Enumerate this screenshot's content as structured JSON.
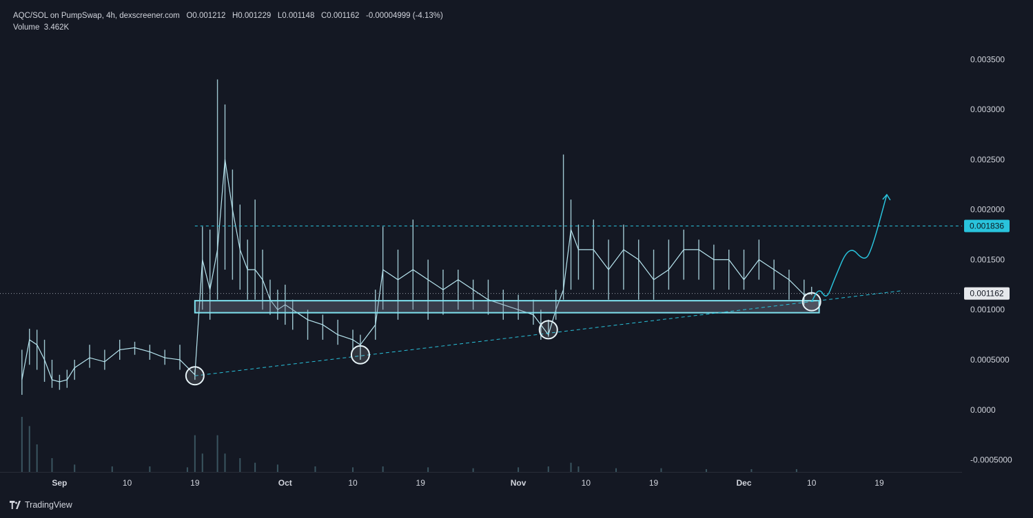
{
  "header": {
    "symbol": "AQC/SOL on PumpSwap, 4h, dexscreener.com",
    "open_label": "O",
    "open": "0.001212",
    "high_label": "H",
    "high": "0.001229",
    "low_label": "L",
    "low": "0.001148",
    "close_label": "C",
    "close": "0.001162",
    "change": "-0.00004999 (-4.13%)",
    "volume_label": "Volume",
    "volume": "3.462K"
  },
  "footer": {
    "brand": "TradingView"
  },
  "colors": {
    "background": "#141823",
    "candle": "#b8e6f0",
    "accent": "#29c3dc",
    "current_price_tag": "#e6e8ec",
    "volume_bar": "#3a5560"
  },
  "chart_data": {
    "type": "line",
    "title": "",
    "xlabel": "",
    "ylabel": "",
    "x_ticks": [
      "Sep",
      "10",
      "19",
      "Oct",
      "10",
      "19",
      "Nov",
      "10",
      "19",
      "Dec",
      "10",
      "19"
    ],
    "x_tick_dates": [
      "2025-09-01",
      "2025-09-10",
      "2025-09-19",
      "2025-10-01",
      "2025-10-10",
      "2025-10-19",
      "2025-11-01",
      "2025-11-10",
      "2025-11-19",
      "2025-12-01",
      "2025-12-10",
      "2025-12-19"
    ],
    "y_ticks": [
      "0.003500",
      "0.003000",
      "0.002500",
      "0.002000",
      "0.001500",
      "0.001000",
      "0.0005000",
      "0.0000",
      "-0.0005000"
    ],
    "y_tick_values": [
      0.0035,
      0.003,
      0.0025,
      0.002,
      0.0015,
      0.001,
      0.0005,
      0.0,
      -0.0005
    ],
    "ylim": [
      -0.00062,
      0.00375
    ],
    "xlim": [
      "2025-08-25",
      "2025-12-30"
    ],
    "grid": false,
    "current_price": 0.001162,
    "current_price_label": "0.001162",
    "resistance_price": 0.001836,
    "resistance_label": "0.001836",
    "series": [
      {
        "x": [
          "2025-08-27",
          "2025-08-28",
          "2025-08-29",
          "2025-08-30",
          "2025-08-31",
          "2025-09-01",
          "2025-09-02",
          "2025-09-03",
          "2025-09-05",
          "2025-09-07",
          "2025-09-09",
          "2025-09-11",
          "2025-09-13",
          "2025-09-15",
          "2025-09-17",
          "2025-09-19",
          "2025-09-20",
          "2025-09-21",
          "2025-09-22",
          "2025-09-23",
          "2025-09-24",
          "2025-09-25",
          "2025-09-26",
          "2025-09-27",
          "2025-09-28",
          "2025-09-29",
          "2025-09-30",
          "2025-10-01",
          "2025-10-02",
          "2025-10-04",
          "2025-10-06",
          "2025-10-08",
          "2025-10-10",
          "2025-10-11",
          "2025-10-13",
          "2025-10-14",
          "2025-10-16",
          "2025-10-18",
          "2025-10-20",
          "2025-10-22",
          "2025-10-24",
          "2025-10-26",
          "2025-10-28",
          "2025-10-30",
          "2025-11-01",
          "2025-11-03",
          "2025-11-04",
          "2025-11-05",
          "2025-11-06",
          "2025-11-07",
          "2025-11-08",
          "2025-11-09",
          "2025-11-11",
          "2025-11-13",
          "2025-11-15",
          "2025-11-17",
          "2025-11-19",
          "2025-11-21",
          "2025-11-23",
          "2025-11-25",
          "2025-11-27",
          "2025-11-29",
          "2025-12-01",
          "2025-12-03",
          "2025-12-05",
          "2025-12-07",
          "2025-12-09",
          "2025-12-10"
        ],
        "close": [
          0.0003,
          0.0007,
          0.00065,
          0.0005,
          0.0003,
          0.00028,
          0.0003,
          0.00042,
          0.00052,
          0.00048,
          0.0006,
          0.00062,
          0.00058,
          0.00052,
          0.0005,
          0.00035,
          0.0015,
          0.0012,
          0.0016,
          0.0025,
          0.002,
          0.0016,
          0.0014,
          0.0014,
          0.0013,
          0.0011,
          0.001,
          0.00105,
          0.001,
          0.0009,
          0.00085,
          0.00075,
          0.0007,
          0.00065,
          0.00085,
          0.0014,
          0.0013,
          0.0014,
          0.0013,
          0.0012,
          0.0013,
          0.0012,
          0.0011,
          0.00105,
          0.001,
          0.00095,
          0.00085,
          0.00075,
          0.001,
          0.0012,
          0.0018,
          0.0016,
          0.0016,
          0.0014,
          0.0016,
          0.0015,
          0.0013,
          0.0014,
          0.0016,
          0.0016,
          0.0015,
          0.0015,
          0.0013,
          0.0015,
          0.0014,
          0.0013,
          0.00115,
          0.001162
        ],
        "high": [
          0.0006,
          0.00081,
          0.0008,
          0.0007,
          0.0005,
          0.00035,
          0.0004,
          0.0005,
          0.00065,
          0.0006,
          0.0007,
          0.00068,
          0.00065,
          0.0006,
          0.00065,
          0.0004,
          0.00183,
          0.0018,
          0.0033,
          0.00305,
          0.0024,
          0.00205,
          0.0017,
          0.0021,
          0.0016,
          0.0013,
          0.0012,
          0.00125,
          0.0011,
          0.001,
          0.00095,
          0.0009,
          0.0008,
          0.00075,
          0.0012,
          0.00183,
          0.0016,
          0.0019,
          0.0015,
          0.0014,
          0.0014,
          0.0013,
          0.0013,
          0.0012,
          0.00115,
          0.0011,
          0.001,
          0.0009,
          0.0012,
          0.00255,
          0.0021,
          0.00185,
          0.0019,
          0.0017,
          0.00185,
          0.0017,
          0.0016,
          0.0017,
          0.0018,
          0.0017,
          0.00165,
          0.0016,
          0.0016,
          0.0017,
          0.0015,
          0.0014,
          0.0013,
          0.001229
        ],
        "low": [
          0.00015,
          0.00045,
          0.0004,
          0.00028,
          0.00022,
          0.0002,
          0.00022,
          0.0003,
          0.00042,
          0.0004,
          0.0005,
          0.00055,
          0.0005,
          0.00045,
          0.0004,
          0.0003,
          0.001,
          0.0009,
          0.0011,
          0.0014,
          0.0013,
          0.0012,
          0.0011,
          0.0011,
          0.001,
          0.00095,
          0.0009,
          0.00085,
          0.0008,
          0.0007,
          0.0007,
          0.00065,
          0.0006,
          0.0005,
          0.0007,
          0.001,
          0.0009,
          0.001,
          0.0009,
          0.00095,
          0.001,
          0.001,
          0.00095,
          0.0009,
          0.0009,
          0.00085,
          0.0007,
          0.00073,
          0.0009,
          0.0011,
          0.0012,
          0.0013,
          0.0012,
          0.0011,
          0.0012,
          0.0011,
          0.0011,
          0.0012,
          0.0013,
          0.0013,
          0.0012,
          0.0012,
          0.0012,
          0.0013,
          0.0012,
          0.0011,
          0.00105,
          0.001148
        ]
      }
    ],
    "volume": {
      "x": [
        "2025-08-27",
        "2025-08-28",
        "2025-08-29",
        "2025-08-31",
        "2025-09-03",
        "2025-09-08",
        "2025-09-13",
        "2025-09-18",
        "2025-09-19",
        "2025-09-20",
        "2025-09-22",
        "2025-09-23",
        "2025-09-25",
        "2025-09-27",
        "2025-09-30",
        "2025-10-05",
        "2025-10-10",
        "2025-10-14",
        "2025-10-20",
        "2025-10-26",
        "2025-11-01",
        "2025-11-05",
        "2025-11-08",
        "2025-11-09",
        "2025-11-14",
        "2025-11-20",
        "2025-11-26",
        "2025-12-02",
        "2025-12-08"
      ],
      "values": [
        0.0006,
        0.0005,
        0.0003,
        0.00015,
        8e-05,
        6e-05,
        6e-05,
        5e-05,
        0.0004,
        0.0002,
        0.0004,
        0.0002,
        0.00015,
        0.0001,
        8e-05,
        6e-05,
        5e-05,
        6e-05,
        5e-05,
        4e-05,
        5e-05,
        6e-05,
        0.0001,
        6e-05,
        4e-05,
        4e-05,
        3e-05,
        3e-05,
        3e-05
      ]
    },
    "annotations": {
      "support_zone": {
        "x_start": "2025-09-19",
        "x_end": "2025-12-11",
        "y_low": 0.00097,
        "y_high": 0.00109
      },
      "resistance_line": {
        "y": 0.001836,
        "x_start": "2025-09-19"
      },
      "trendline": {
        "x_start": "2025-09-19",
        "y_start": 0.00034,
        "x_end": "2025-12-22",
        "y_end": 0.00119
      },
      "touch_circles": [
        {
          "x": "2025-09-19",
          "y": 0.00034
        },
        {
          "x": "2025-10-11",
          "y": 0.00055
        },
        {
          "x": "2025-11-05",
          "y": 0.0008
        },
        {
          "x": "2025-12-10",
          "y": 0.00108
        }
      ],
      "projection_path": [
        {
          "x": "2025-12-10",
          "y": 0.00108
        },
        {
          "x": "2025-12-11",
          "y": 0.00122
        },
        {
          "x": "2025-12-12",
          "y": 0.0011
        },
        {
          "x": "2025-12-13",
          "y": 0.0013
        },
        {
          "x": "2025-12-15",
          "y": 0.00165
        },
        {
          "x": "2025-12-17",
          "y": 0.00148
        },
        {
          "x": "2025-12-18",
          "y": 0.0016
        },
        {
          "x": "2025-12-20",
          "y": 0.00215
        }
      ]
    }
  }
}
